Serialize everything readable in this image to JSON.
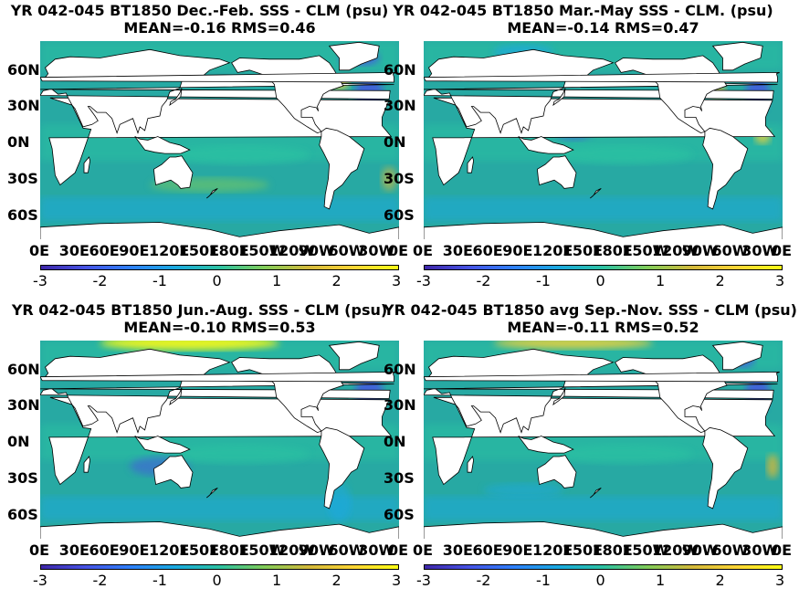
{
  "chart_data": [
    {
      "type": "heatmap",
      "title": "YR 042-045 BT1850  Dec.-Feb. SSS - CLM (psu)",
      "subtitle": "MEAN=-0.16   RMS=0.46",
      "mean": -0.16,
      "rms": 0.46,
      "yticks": [
        "60N",
        "30N",
        "0N",
        "30S",
        "60S"
      ],
      "xticks": [
        "0E",
        "30E",
        "60E",
        "90E",
        "120E",
        "150E",
        "180E",
        "150W",
        "120W",
        "90W",
        "60W",
        "30W",
        "0E"
      ],
      "colorbar": {
        "ticks": [
          "-3",
          "-2",
          "-1",
          "0",
          "1",
          "2",
          "3"
        ],
        "range": [
          -3,
          3
        ]
      }
    },
    {
      "type": "heatmap",
      "title": "YR 042-045 BT1850 Mar.-May SSS - CLM. (psu)",
      "subtitle": "MEAN=-0.14   RMS=0.47",
      "mean": -0.14,
      "rms": 0.47,
      "yticks": [
        "60N",
        "30N",
        "0N",
        "30S",
        "60S"
      ],
      "xticks": [
        "0E",
        "30E",
        "60E",
        "90E",
        "120E",
        "150E",
        "180E",
        "150W",
        "120W",
        "90W",
        "60W",
        "30W",
        "0E"
      ],
      "colorbar": {
        "ticks": [
          "-3",
          "-2",
          "-1",
          "0",
          "1",
          "2",
          "3"
        ],
        "range": [
          -3,
          3
        ]
      }
    },
    {
      "type": "heatmap",
      "title": "YR 042-045 BT1850 Jun.-Aug. SSS - CLM (psu)",
      "subtitle": "MEAN=-0.10   RMS=0.53",
      "mean": -0.1,
      "rms": 0.53,
      "yticks": [
        "60N",
        "30N",
        "0N",
        "30S",
        "60S"
      ],
      "xticks": [
        "0E",
        "30E",
        "60E",
        "90E",
        "120E",
        "150E",
        "180E",
        "150W",
        "120W",
        "90W",
        "60W",
        "30W",
        "0E"
      ],
      "colorbar": {
        "ticks": [
          "-3",
          "-2",
          "-1",
          "0",
          "1",
          "2",
          "3"
        ],
        "range": [
          -3,
          3
        ]
      }
    },
    {
      "type": "heatmap",
      "title": "YR 042-045 BT1850 avg Sep.-Nov. SSS - CLM (psu)",
      "subtitle": "MEAN=-0.11   RMS=0.52",
      "mean": -0.11,
      "rms": 0.52,
      "yticks": [
        "60N",
        "30N",
        "0N",
        "30S",
        "60S"
      ],
      "xticks": [
        "0E",
        "30E",
        "60E",
        "90E",
        "120E",
        "150E",
        "180E",
        "150W",
        "120W",
        "90W",
        "60W",
        "30W",
        "0E"
      ],
      "colorbar": {
        "ticks": [
          "-3",
          "-2",
          "-1",
          "0",
          "1",
          "2",
          "3"
        ],
        "range": [
          -3,
          3
        ]
      }
    }
  ],
  "colors": {
    "ocean": "#27a9a3",
    "land": "#ffffff",
    "colormap": [
      "#3e26a8",
      "#4653e4",
      "#2f80f9",
      "#1aa9df",
      "#2cc2a2",
      "#81cc59",
      "#d4b93b",
      "#fcd535",
      "#f9fb15"
    ]
  }
}
